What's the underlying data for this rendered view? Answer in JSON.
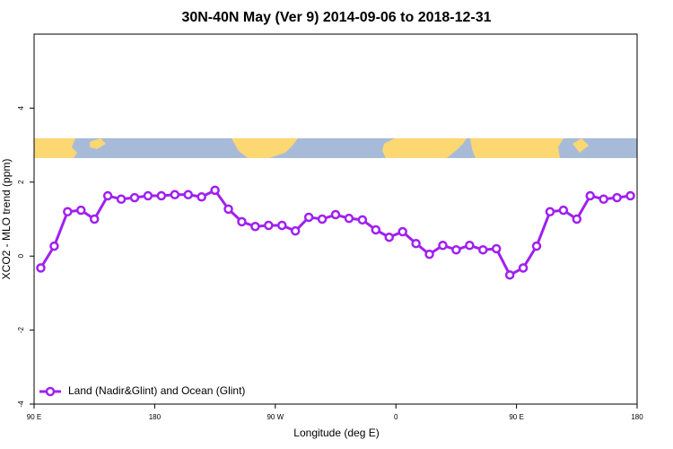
{
  "chart_data": {
    "type": "line",
    "title": "30N-40N May (Ver 9)   2014-09-06 to 2018-12-31",
    "x_label": "Longitude (deg E)",
    "y_label": "XCO2 - MLO trend (ppm)",
    "x": [
      95,
      105,
      115,
      125,
      135,
      145,
      155,
      165,
      175,
      185,
      195,
      205,
      215,
      225,
      235,
      245,
      255,
      265,
      275,
      285,
      295,
      305,
      315,
      325,
      335,
      345,
      355,
      365,
      375,
      385,
      395,
      405,
      415,
      425,
      435,
      445,
      455,
      465,
      475,
      485,
      495,
      505,
      515,
      525,
      535
    ],
    "series": [
      {
        "name": "Land (Nadir&Glint) and Ocean (Glint)",
        "color": "#a020f0",
        "values": [
          -0.32,
          0.27,
          1.2,
          1.24,
          1.0,
          1.63,
          1.54,
          1.58,
          1.63,
          1.63,
          1.66,
          1.66,
          1.6,
          1.78,
          1.27,
          0.93,
          0.8,
          0.83,
          0.83,
          0.68,
          1.05,
          1.0,
          1.12,
          1.02,
          0.98,
          0.71,
          0.51,
          0.66,
          0.34,
          0.05,
          0.29,
          0.17,
          0.29,
          0.17,
          0.2,
          -0.51,
          -0.32,
          0.27,
          1.2,
          1.24,
          1.0,
          1.63,
          1.54,
          1.58,
          1.63
        ]
      }
    ],
    "xlim": [
      90,
      540
    ],
    "xticks": [
      {
        "value": 90,
        "label": "90 E"
      },
      180,
      {
        "value": 270,
        "label": "90 W"
      },
      {
        "value": 360,
        "label": "0"
      },
      {
        "value": 450,
        "label": "90 E"
      },
      {
        "value": 540,
        "label": "180"
      }
    ],
    "ylim": [
      -4,
      6
    ],
    "yticks": [
      -4,
      -2,
      0,
      2,
      4
    ],
    "legend_position": "bottom-left"
  }
}
